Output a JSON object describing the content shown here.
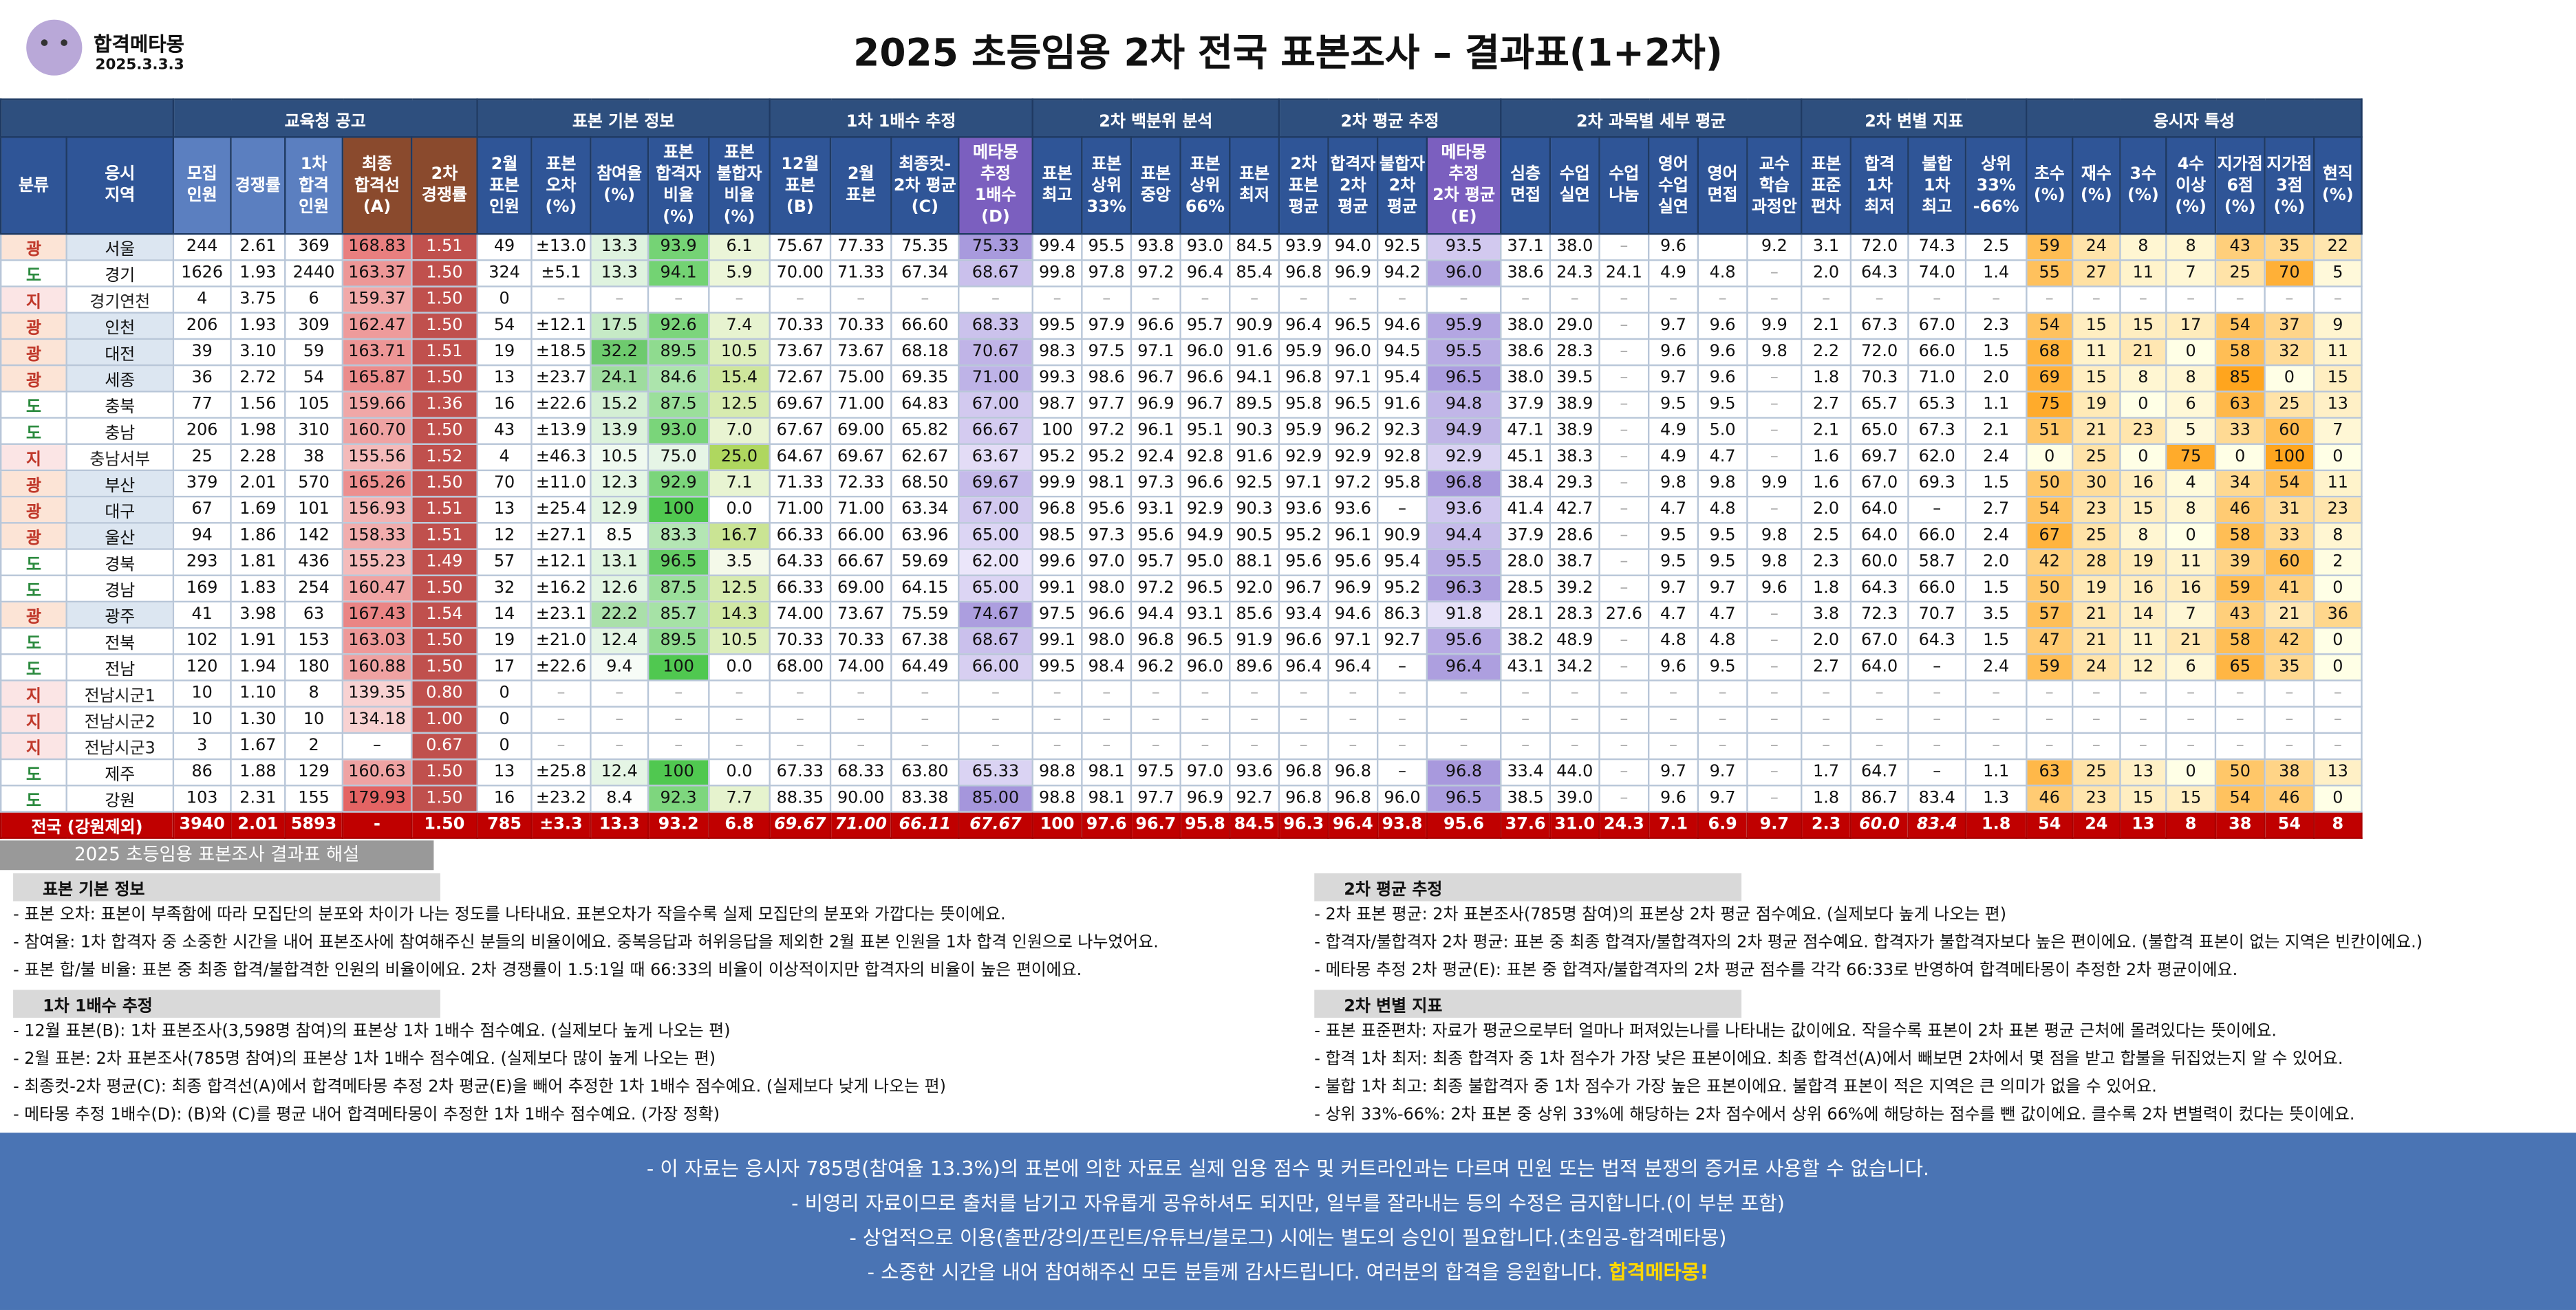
{
  "header": {
    "brand": "합격메타몽",
    "date": "2025.3.3.3",
    "title": "2025 초등임용 2차 전국 표본조사 – 결과표(1+2차)",
    "watermark": "합격메타몽"
  },
  "groups": [
    {
      "label": "",
      "span": 2
    },
    {
      "label": "교육청 공고",
      "span": 5
    },
    {
      "label": "표본 기본 정보",
      "span": 5
    },
    {
      "label": "1차 1배수 추정",
      "span": 4
    },
    {
      "label": "2차 백분위 분석",
      "span": 5
    },
    {
      "label": "2차 평균 추정",
      "span": 4
    },
    {
      "label": "2차 과목별 세부 평균",
      "span": 6
    },
    {
      "label": "2차 변별 지표",
      "span": 4
    },
    {
      "label": "응시자 특성",
      "span": 7
    }
  ],
  "columns": [
    "분류",
    "응시\n지역",
    "모집\n인원",
    "경쟁률",
    "1차\n합격\n인원",
    "최종\n합격선\n(A)",
    "2차\n경쟁률",
    "2월\n표본\n인원",
    "표본\n오차\n(%)",
    "참여율\n(%)",
    "표본\n합격자\n비율\n(%)",
    "표본\n불합자\n비율\n(%)",
    "12월\n표본\n(B)",
    "2월\n표본",
    "최종컷-\n2차 평균\n(C)",
    "메타몽\n추정\n1배수\n(D)",
    "표본\n최고",
    "표본\n상위\n33%",
    "표본\n중앙",
    "표본\n상위\n66%",
    "표본\n최저",
    "2차\n표본\n평균",
    "합격자\n2차\n평균",
    "불합자\n2차\n평균",
    "메타몽\n추정\n2차 평균\n(E)",
    "심층\n면접",
    "수업\n실연",
    "수업\n나눔",
    "영어\n수업\n실연",
    "영어\n면접",
    "교수\n학습\n과정안",
    "표본\n표준\n편차",
    "합격\n1차\n최저",
    "불합\n1차\n최고",
    "상위\n33%\n-66%",
    "초수\n(%)",
    "재수\n(%)",
    "3수\n(%)",
    "4수\n이상\n(%)",
    "지가점\n6점\n(%)",
    "지가점\n3점\n(%)",
    "현직\n(%)"
  ],
  "rows": [
    [
      "광",
      "서울",
      "244",
      "2.61",
      "369",
      "168.83",
      "1.51",
      "49",
      "±13.0",
      "13.3",
      "93.9",
      "6.1",
      "75.67",
      "77.33",
      "75.35",
      "75.33",
      "99.4",
      "95.5",
      "93.8",
      "93.0",
      "84.5",
      "93.9",
      "94.0",
      "92.5",
      "93.5",
      "37.1",
      "38.0",
      "–",
      "9.6",
      "",
      "9.2",
      "3.1",
      "72.0",
      "74.3",
      "2.5",
      "59",
      "24",
      "8",
      "8",
      "43",
      "35",
      "22"
    ],
    [
      "도",
      "경기",
      "1626",
      "1.93",
      "2440",
      "163.37",
      "1.50",
      "324",
      "±5.1",
      "13.3",
      "94.1",
      "5.9",
      "70.00",
      "71.33",
      "67.34",
      "68.67",
      "99.8",
      "97.8",
      "97.2",
      "96.4",
      "85.4",
      "96.8",
      "96.9",
      "94.2",
      "96.0",
      "38.6",
      "24.3",
      "24.1",
      "4.9",
      "4.8",
      "–",
      "2.0",
      "64.3",
      "74.0",
      "1.4",
      "55",
      "27",
      "11",
      "7",
      "25",
      "70",
      "5"
    ],
    [
      "지",
      "경기연천",
      "4",
      "3.75",
      "6",
      "159.37",
      "1.50",
      "0",
      "–",
      "–",
      "–",
      "–",
      "–",
      "–",
      "–",
      "–",
      "–",
      "–",
      "–",
      "–",
      "–",
      "–",
      "–",
      "–",
      "–",
      "–",
      "–",
      "–",
      "–",
      "–",
      "–",
      "–",
      "–",
      "–",
      "–",
      "–",
      "–",
      "–",
      "–",
      "–",
      "–",
      "–"
    ],
    [
      "광",
      "인천",
      "206",
      "1.93",
      "309",
      "162.47",
      "1.50",
      "54",
      "±12.1",
      "17.5",
      "92.6",
      "7.4",
      "70.33",
      "70.33",
      "66.60",
      "68.33",
      "99.5",
      "97.9",
      "96.6",
      "95.7",
      "90.9",
      "96.4",
      "96.5",
      "94.6",
      "95.9",
      "38.0",
      "29.0",
      "–",
      "9.7",
      "9.6",
      "9.9",
      "2.1",
      "67.3",
      "67.0",
      "2.3",
      "54",
      "15",
      "15",
      "17",
      "54",
      "37",
      "9"
    ],
    [
      "광",
      "대전",
      "39",
      "3.10",
      "59",
      "163.71",
      "1.51",
      "19",
      "±18.5",
      "32.2",
      "89.5",
      "10.5",
      "73.67",
      "73.67",
      "68.18",
      "70.67",
      "98.3",
      "97.5",
      "97.1",
      "96.0",
      "91.6",
      "95.9",
      "96.0",
      "94.5",
      "95.5",
      "38.6",
      "28.3",
      "–",
      "9.6",
      "9.6",
      "9.8",
      "2.2",
      "72.0",
      "66.0",
      "1.5",
      "68",
      "11",
      "21",
      "0",
      "58",
      "32",
      "11"
    ],
    [
      "광",
      "세종",
      "36",
      "2.72",
      "54",
      "165.87",
      "1.50",
      "13",
      "±23.7",
      "24.1",
      "84.6",
      "15.4",
      "72.67",
      "75.00",
      "69.35",
      "71.00",
      "99.3",
      "98.6",
      "96.7",
      "96.6",
      "94.1",
      "96.8",
      "97.1",
      "95.4",
      "96.5",
      "38.0",
      "39.5",
      "–",
      "9.7",
      "9.6",
      "–",
      "1.8",
      "70.3",
      "71.0",
      "2.0",
      "69",
      "15",
      "8",
      "8",
      "85",
      "0",
      "15"
    ],
    [
      "도",
      "충북",
      "77",
      "1.56",
      "105",
      "159.66",
      "1.36",
      "16",
      "±22.6",
      "15.2",
      "87.5",
      "12.5",
      "69.67",
      "71.00",
      "64.83",
      "67.00",
      "98.7",
      "97.7",
      "96.9",
      "96.7",
      "89.5",
      "95.8",
      "96.5",
      "91.6",
      "94.8",
      "37.9",
      "38.9",
      "–",
      "9.5",
      "9.5",
      "–",
      "2.7",
      "65.7",
      "65.3",
      "1.1",
      "75",
      "19",
      "0",
      "6",
      "63",
      "25",
      "13"
    ],
    [
      "도",
      "충남",
      "206",
      "1.98",
      "310",
      "160.70",
      "1.50",
      "43",
      "±13.9",
      "13.9",
      "93.0",
      "7.0",
      "67.67",
      "69.00",
      "65.82",
      "66.67",
      "100",
      "97.2",
      "96.1",
      "95.1",
      "90.3",
      "95.9",
      "96.2",
      "92.3",
      "94.9",
      "47.1",
      "38.9",
      "–",
      "4.9",
      "5.0",
      "–",
      "2.1",
      "65.0",
      "67.3",
      "2.1",
      "51",
      "21",
      "23",
      "5",
      "33",
      "60",
      "7"
    ],
    [
      "지",
      "충남서부",
      "25",
      "2.28",
      "38",
      "155.56",
      "1.52",
      "4",
      "±46.3",
      "10.5",
      "75.0",
      "25.0",
      "64.67",
      "69.67",
      "62.67",
      "63.67",
      "95.2",
      "95.2",
      "92.4",
      "92.8",
      "91.6",
      "92.9",
      "92.9",
      "92.8",
      "92.9",
      "45.1",
      "38.3",
      "–",
      "4.9",
      "4.7",
      "–",
      "1.6",
      "69.7",
      "62.0",
      "2.4",
      "0",
      "25",
      "0",
      "75",
      "0",
      "100",
      "0"
    ],
    [
      "광",
      "부산",
      "379",
      "2.01",
      "570",
      "165.26",
      "1.50",
      "70",
      "±11.0",
      "12.3",
      "92.9",
      "7.1",
      "71.33",
      "72.33",
      "68.50",
      "69.67",
      "99.9",
      "98.1",
      "97.3",
      "96.6",
      "92.5",
      "97.1",
      "97.2",
      "95.8",
      "96.8",
      "38.4",
      "29.3",
      "–",
      "9.8",
      "9.8",
      "9.9",
      "1.6",
      "67.0",
      "69.3",
      "1.5",
      "50",
      "30",
      "16",
      "4",
      "34",
      "54",
      "11"
    ],
    [
      "광",
      "대구",
      "67",
      "1.69",
      "101",
      "156.93",
      "1.51",
      "13",
      "±25.4",
      "12.9",
      "100",
      "0.0",
      "71.00",
      "71.00",
      "63.34",
      "67.00",
      "96.8",
      "95.6",
      "93.1",
      "92.9",
      "90.3",
      "93.6",
      "93.6",
      "–",
      "93.6",
      "41.4",
      "42.7",
      "–",
      "4.7",
      "4.8",
      "–",
      "2.0",
      "64.0",
      "–",
      "2.7",
      "54",
      "23",
      "15",
      "8",
      "46",
      "31",
      "23"
    ],
    [
      "광",
      "울산",
      "94",
      "1.86",
      "142",
      "158.33",
      "1.51",
      "12",
      "±27.1",
      "8.5",
      "83.3",
      "16.7",
      "66.33",
      "66.00",
      "63.96",
      "65.00",
      "98.5",
      "97.3",
      "95.6",
      "94.9",
      "90.5",
      "95.2",
      "96.1",
      "90.9",
      "94.4",
      "37.9",
      "28.6",
      "–",
      "9.5",
      "9.5",
      "9.8",
      "2.5",
      "64.0",
      "66.0",
      "2.4",
      "67",
      "25",
      "8",
      "0",
      "58",
      "33",
      "8"
    ],
    [
      "도",
      "경북",
      "293",
      "1.81",
      "436",
      "155.23",
      "1.49",
      "57",
      "±12.1",
      "13.1",
      "96.5",
      "3.5",
      "64.33",
      "66.67",
      "59.69",
      "62.00",
      "99.6",
      "97.0",
      "95.7",
      "95.0",
      "88.1",
      "95.6",
      "95.6",
      "95.4",
      "95.5",
      "28.0",
      "38.7",
      "–",
      "9.5",
      "9.5",
      "9.8",
      "2.3",
      "60.0",
      "58.7",
      "2.0",
      "42",
      "28",
      "19",
      "11",
      "39",
      "60",
      "2"
    ],
    [
      "도",
      "경남",
      "169",
      "1.83",
      "254",
      "160.47",
      "1.50",
      "32",
      "±16.2",
      "12.6",
      "87.5",
      "12.5",
      "66.33",
      "69.00",
      "64.15",
      "65.00",
      "99.1",
      "98.0",
      "97.2",
      "96.5",
      "92.0",
      "96.7",
      "96.9",
      "95.2",
      "96.3",
      "28.5",
      "39.2",
      "–",
      "9.7",
      "9.7",
      "9.6",
      "1.8",
      "64.3",
      "66.0",
      "1.5",
      "50",
      "19",
      "16",
      "16",
      "59",
      "41",
      "0"
    ],
    [
      "광",
      "광주",
      "41",
      "3.98",
      "63",
      "167.43",
      "1.54",
      "14",
      "±23.1",
      "22.2",
      "85.7",
      "14.3",
      "74.00",
      "73.67",
      "75.59",
      "74.67",
      "97.5",
      "96.6",
      "94.4",
      "93.1",
      "85.6",
      "93.4",
      "94.6",
      "86.3",
      "91.8",
      "28.1",
      "28.3",
      "27.6",
      "4.7",
      "4.7",
      "–",
      "3.8",
      "72.3",
      "70.7",
      "3.5",
      "57",
      "21",
      "14",
      "7",
      "43",
      "21",
      "36"
    ],
    [
      "도",
      "전북",
      "102",
      "1.91",
      "153",
      "163.03",
      "1.50",
      "19",
      "±21.0",
      "12.4",
      "89.5",
      "10.5",
      "70.33",
      "70.33",
      "67.38",
      "68.67",
      "99.1",
      "98.0",
      "96.8",
      "96.5",
      "91.9",
      "96.6",
      "97.1",
      "92.7",
      "95.6",
      "38.2",
      "48.9",
      "–",
      "4.8",
      "4.8",
      "–",
      "2.0",
      "67.0",
      "64.3",
      "1.5",
      "47",
      "21",
      "11",
      "21",
      "58",
      "42",
      "0"
    ],
    [
      "도",
      "전남",
      "120",
      "1.94",
      "180",
      "160.88",
      "1.50",
      "17",
      "±22.6",
      "9.4",
      "100",
      "0.0",
      "68.00",
      "74.00",
      "64.49",
      "66.00",
      "99.5",
      "98.4",
      "96.2",
      "96.0",
      "89.6",
      "96.4",
      "96.4",
      "–",
      "96.4",
      "43.1",
      "34.2",
      "–",
      "9.6",
      "9.5",
      "–",
      "2.7",
      "64.0",
      "–",
      "2.4",
      "59",
      "24",
      "12",
      "6",
      "65",
      "35",
      "0"
    ],
    [
      "지",
      "전남시군1",
      "10",
      "1.10",
      "8",
      "139.35",
      "0.80",
      "0",
      "–",
      "–",
      "–",
      "–",
      "–",
      "–",
      "–",
      "–",
      "–",
      "–",
      "–",
      "–",
      "–",
      "–",
      "–",
      "–",
      "–",
      "–",
      "–",
      "–",
      "–",
      "–",
      "–",
      "–",
      "–",
      "–",
      "–",
      "–",
      "–",
      "–",
      "–",
      "–",
      "–",
      "–"
    ],
    [
      "지",
      "전남시군2",
      "10",
      "1.30",
      "10",
      "134.18",
      "1.00",
      "0",
      "–",
      "–",
      "–",
      "–",
      "–",
      "–",
      "–",
      "–",
      "–",
      "–",
      "–",
      "–",
      "–",
      "–",
      "–",
      "–",
      "–",
      "–",
      "–",
      "–",
      "–",
      "–",
      "–",
      "–",
      "–",
      "–",
      "–",
      "–",
      "–",
      "–",
      "–",
      "–",
      "–",
      "–"
    ],
    [
      "지",
      "전남시군3",
      "3",
      "1.67",
      "2",
      "–",
      "0.67",
      "0",
      "–",
      "–",
      "–",
      "–",
      "–",
      "–",
      "–",
      "–",
      "–",
      "–",
      "–",
      "–",
      "–",
      "–",
      "–",
      "–",
      "–",
      "–",
      "–",
      "–",
      "–",
      "–",
      "–",
      "–",
      "–",
      "–",
      "–",
      "–",
      "–",
      "–",
      "–",
      "–",
      "–",
      "–"
    ],
    [
      "도",
      "제주",
      "86",
      "1.88",
      "129",
      "160.63",
      "1.50",
      "13",
      "±25.8",
      "12.4",
      "100",
      "0.0",
      "67.33",
      "68.33",
      "63.80",
      "65.33",
      "98.8",
      "98.1",
      "97.5",
      "97.0",
      "93.6",
      "96.8",
      "96.8",
      "–",
      "96.8",
      "33.4",
      "44.0",
      "–",
      "9.7",
      "9.7",
      "–",
      "1.7",
      "64.7",
      "–",
      "1.1",
      "63",
      "25",
      "13",
      "0",
      "50",
      "38",
      "13"
    ],
    [
      "도",
      "강원",
      "103",
      "2.31",
      "155",
      "179.93",
      "1.50",
      "16",
      "±23.2",
      "8.4",
      "92.3",
      "7.7",
      "88.35",
      "90.00",
      "83.38",
      "85.00",
      "98.8",
      "98.1",
      "97.7",
      "96.9",
      "92.7",
      "96.8",
      "96.8",
      "96.0",
      "96.5",
      "38.5",
      "39.0",
      "–",
      "9.6",
      "9.7",
      "–",
      "1.8",
      "86.7",
      "83.4",
      "1.3",
      "46",
      "23",
      "15",
      "15",
      "54",
      "46",
      "0"
    ]
  ],
  "total": [
    "전국 (강원제외)",
    "3940",
    "2.01",
    "5893",
    "-",
    "1.50",
    "785",
    "±3.3",
    "13.3",
    "93.2",
    "6.8",
    "69.67",
    "71.00",
    "66.11",
    "67.67",
    "100",
    "97.6",
    "96.7",
    "95.8",
    "84.5",
    "96.3",
    "96.4",
    "93.8",
    "95.6",
    "37.6",
    "31.0",
    "24.3",
    "7.1",
    "6.9",
    "9.7",
    "2.3",
    "60.0",
    "83.4",
    "1.8",
    "54",
    "24",
    "13",
    "8",
    "38",
    "54",
    "8"
  ],
  "colors": {
    "header": "#2e4f7e",
    "total": "#c00000",
    "cutoff_high": "#e06666",
    "pass_green": "#57bb8a",
    "metamong": "#b4a7d6",
    "attr_high": "#f6b26b"
  },
  "notes": {
    "title": "2025 초등임용 표본조사 결과표 해설",
    "left": [
      {
        "head": "표본 기본 정보",
        "lines": [
          "- 표본 오차: 표본이 부족함에 따라 모집단의 분포와 차이가 나는 정도를 나타내요. 표본오차가 작을수록 실제 모집단의 분포와 가깝다는 뜻이에요.",
          "- 참여율: 1차 합격자 중 소중한 시간을 내어 표본조사에 참여해주신 분들의 비율이에요. 중복응답과 허위응답을 제외한 2월 표본 인원을 1차 합격 인원으로 나누었어요.",
          "- 표본 합/불 비율: 표본 중 최종 합격/불합격한 인원의 비율이에요. 2차 경쟁률이 1.5:1일 때 66:33의 비율이 이상적이지만 합격자의 비율이 높은 편이에요."
        ]
      },
      {
        "head": "1차 1배수 추정",
        "lines": [
          "- 12월 표본(B): 1차 표본조사(3,598명 참여)의 표본상 1차 1배수 점수예요. (실제보다 높게 나오는 편)",
          "- 2월 표본: 2차 표본조사(785명 참여)의 표본상 1차 1배수 점수예요. (실제보다 많이 높게 나오는 편)",
          "- 최종컷-2차 평균(C): 최종 합격선(A)에서 합격메타몽 추정 2차 평균(E)을 빼어 추정한 1차 1배수 점수예요. (실제보다 낮게 나오는 편)",
          "- 메타몽 추정 1배수(D): (B)와 (C)를 평균 내어 합격메타몽이 추정한 1차 1배수 점수예요. (가장 정확)"
        ]
      }
    ],
    "right": [
      {
        "head": "2차 평균 추정",
        "lines": [
          "- 2차 표본 평균: 2차 표본조사(785명 참여)의 표본상 2차 평균 점수예요. (실제보다 높게 나오는 편)",
          "- 합격자/불합격자 2차 평균: 표본 중 최종 합격자/불합격자의 2차 평균 점수예요. 합격자가 불합격자보다 높은 편이에요. (불합격 표본이 없는 지역은 빈칸이에요.)",
          "- 메타몽 추정 2차 평균(E): 표본 중 합격자/불합격자의 2차 평균 점수를 각각 66:33로 반영하여 합격메타몽이 추정한 2차 평균이에요."
        ]
      },
      {
        "head": "2차 변별 지표",
        "lines": [
          "- 표본 표준편차: 자료가 평균으로부터 얼마나 퍼져있는나를 나타내는 값이에요. 작을수록 표본이 2차 표본 평균 근처에 몰려있다는 뜻이에요.",
          "- 합격 1차 최저: 최종 합격자 중 1차 점수가 가장 낮은 표본이에요. 최종 합격선(A)에서 빼보면 2차에서 몇 점을 받고 합불을 뒤집었는지 알 수 있어요.",
          "- 불합 1차 최고: 최종 불합격자 중 1차 점수가 가장 높은 표본이에요. 불합격 표본이 적은 지역은 큰 의미가 없을 수 있어요.",
          "- 상위 33%-66%: 2차 표본 중 상위 33%에 해당하는 2차 점수에서 상위 66%에 해당하는 점수를 뺀 값이에요. 클수록 2차 변별력이 컸다는 뜻이에요."
        ]
      }
    ]
  },
  "footer": {
    "l1": "- 이 자료는 응시자 785명(참여율 13.3%)의 표본에 의한 자료로 실제 임용 점수 및 커트라인과는 다르며 민원 또는 법적 분쟁의 증거로 사용할 수 없습니다.",
    "l2": "- 비영리 자료이므로 출처를 남기고 자유롭게 공유하셔도 되지만, 일부를 잘라내는 등의 수정은 금지합니다.(이 부분 포함)",
    "l3": "- 상업적으로 이용(출판/강의/프린트/유튜브/블로그) 시에는 별도의 승인이 필요합니다.(초임공-합격메타몽)",
    "l4a": "- 소중한 시간을 내어 참여해주신 모든 분들께 감사드립니다. 여러분의 합격을 응원합니다.",
    "l4b": "합격메타몽!"
  }
}
